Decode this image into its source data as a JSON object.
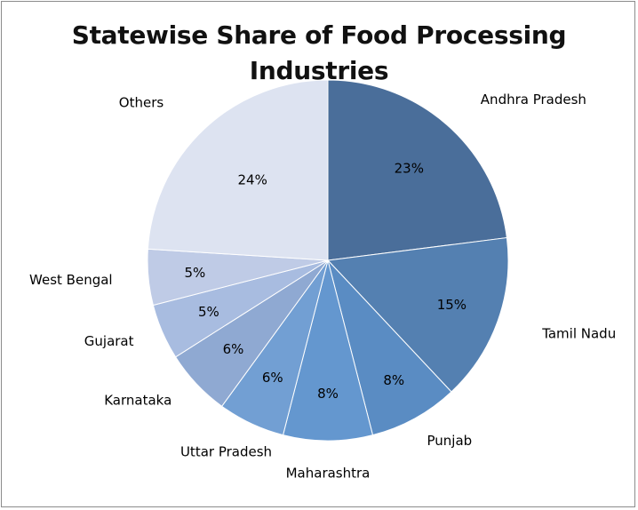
{
  "chart_data": {
    "type": "pie",
    "title": "Statewise Share of Food Processing Industries",
    "categories": [
      "Andhra Pradesh",
      "Tamil Nadu",
      "Punjab",
      "Maharashtra",
      "Uttar Pradesh",
      "Karnataka",
      "Gujarat",
      "West Bengal",
      "Others"
    ],
    "values": [
      23,
      15,
      8,
      8,
      6,
      6,
      5,
      5,
      24
    ],
    "value_labels": [
      "23%",
      "15%",
      "8%",
      "8%",
      "6%",
      "6%",
      "5%",
      "5%",
      "24%"
    ],
    "colors": [
      "#4a6e9a",
      "#5480b1",
      "#5a8cc3",
      "#6497cf",
      "#729fd3",
      "#8fa9d2",
      "#a8bce0",
      "#bfcbe6",
      "#dde3f1"
    ],
    "legend": "none"
  }
}
